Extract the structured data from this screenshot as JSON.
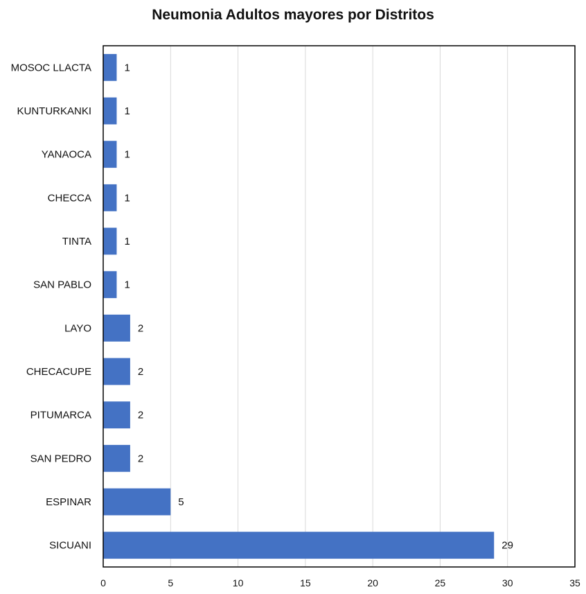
{
  "chart_data": {
    "type": "bar",
    "orientation": "horizontal",
    "title": "Neumonia Adultos mayores por Distritos",
    "xlabel": "",
    "ylabel": "",
    "categories": [
      "SICUANI",
      "ESPINAR",
      "SAN PEDRO",
      "PITUMARCA",
      "CHECACUPE",
      "LAYO",
      "SAN PABLO",
      "TINTA",
      "CHECCA",
      "YANAOCA",
      "KUNTURKANKI",
      "MOSOC LLACTA"
    ],
    "values": [
      29,
      5,
      2,
      2,
      2,
      2,
      1,
      1,
      1,
      1,
      1,
      1
    ],
    "xlim": [
      0,
      35
    ],
    "xticks": [
      0,
      5,
      10,
      15,
      20,
      25,
      30,
      35
    ],
    "grid": true,
    "legend": "none",
    "bar_color": "#4472C4",
    "data_labels": true
  }
}
